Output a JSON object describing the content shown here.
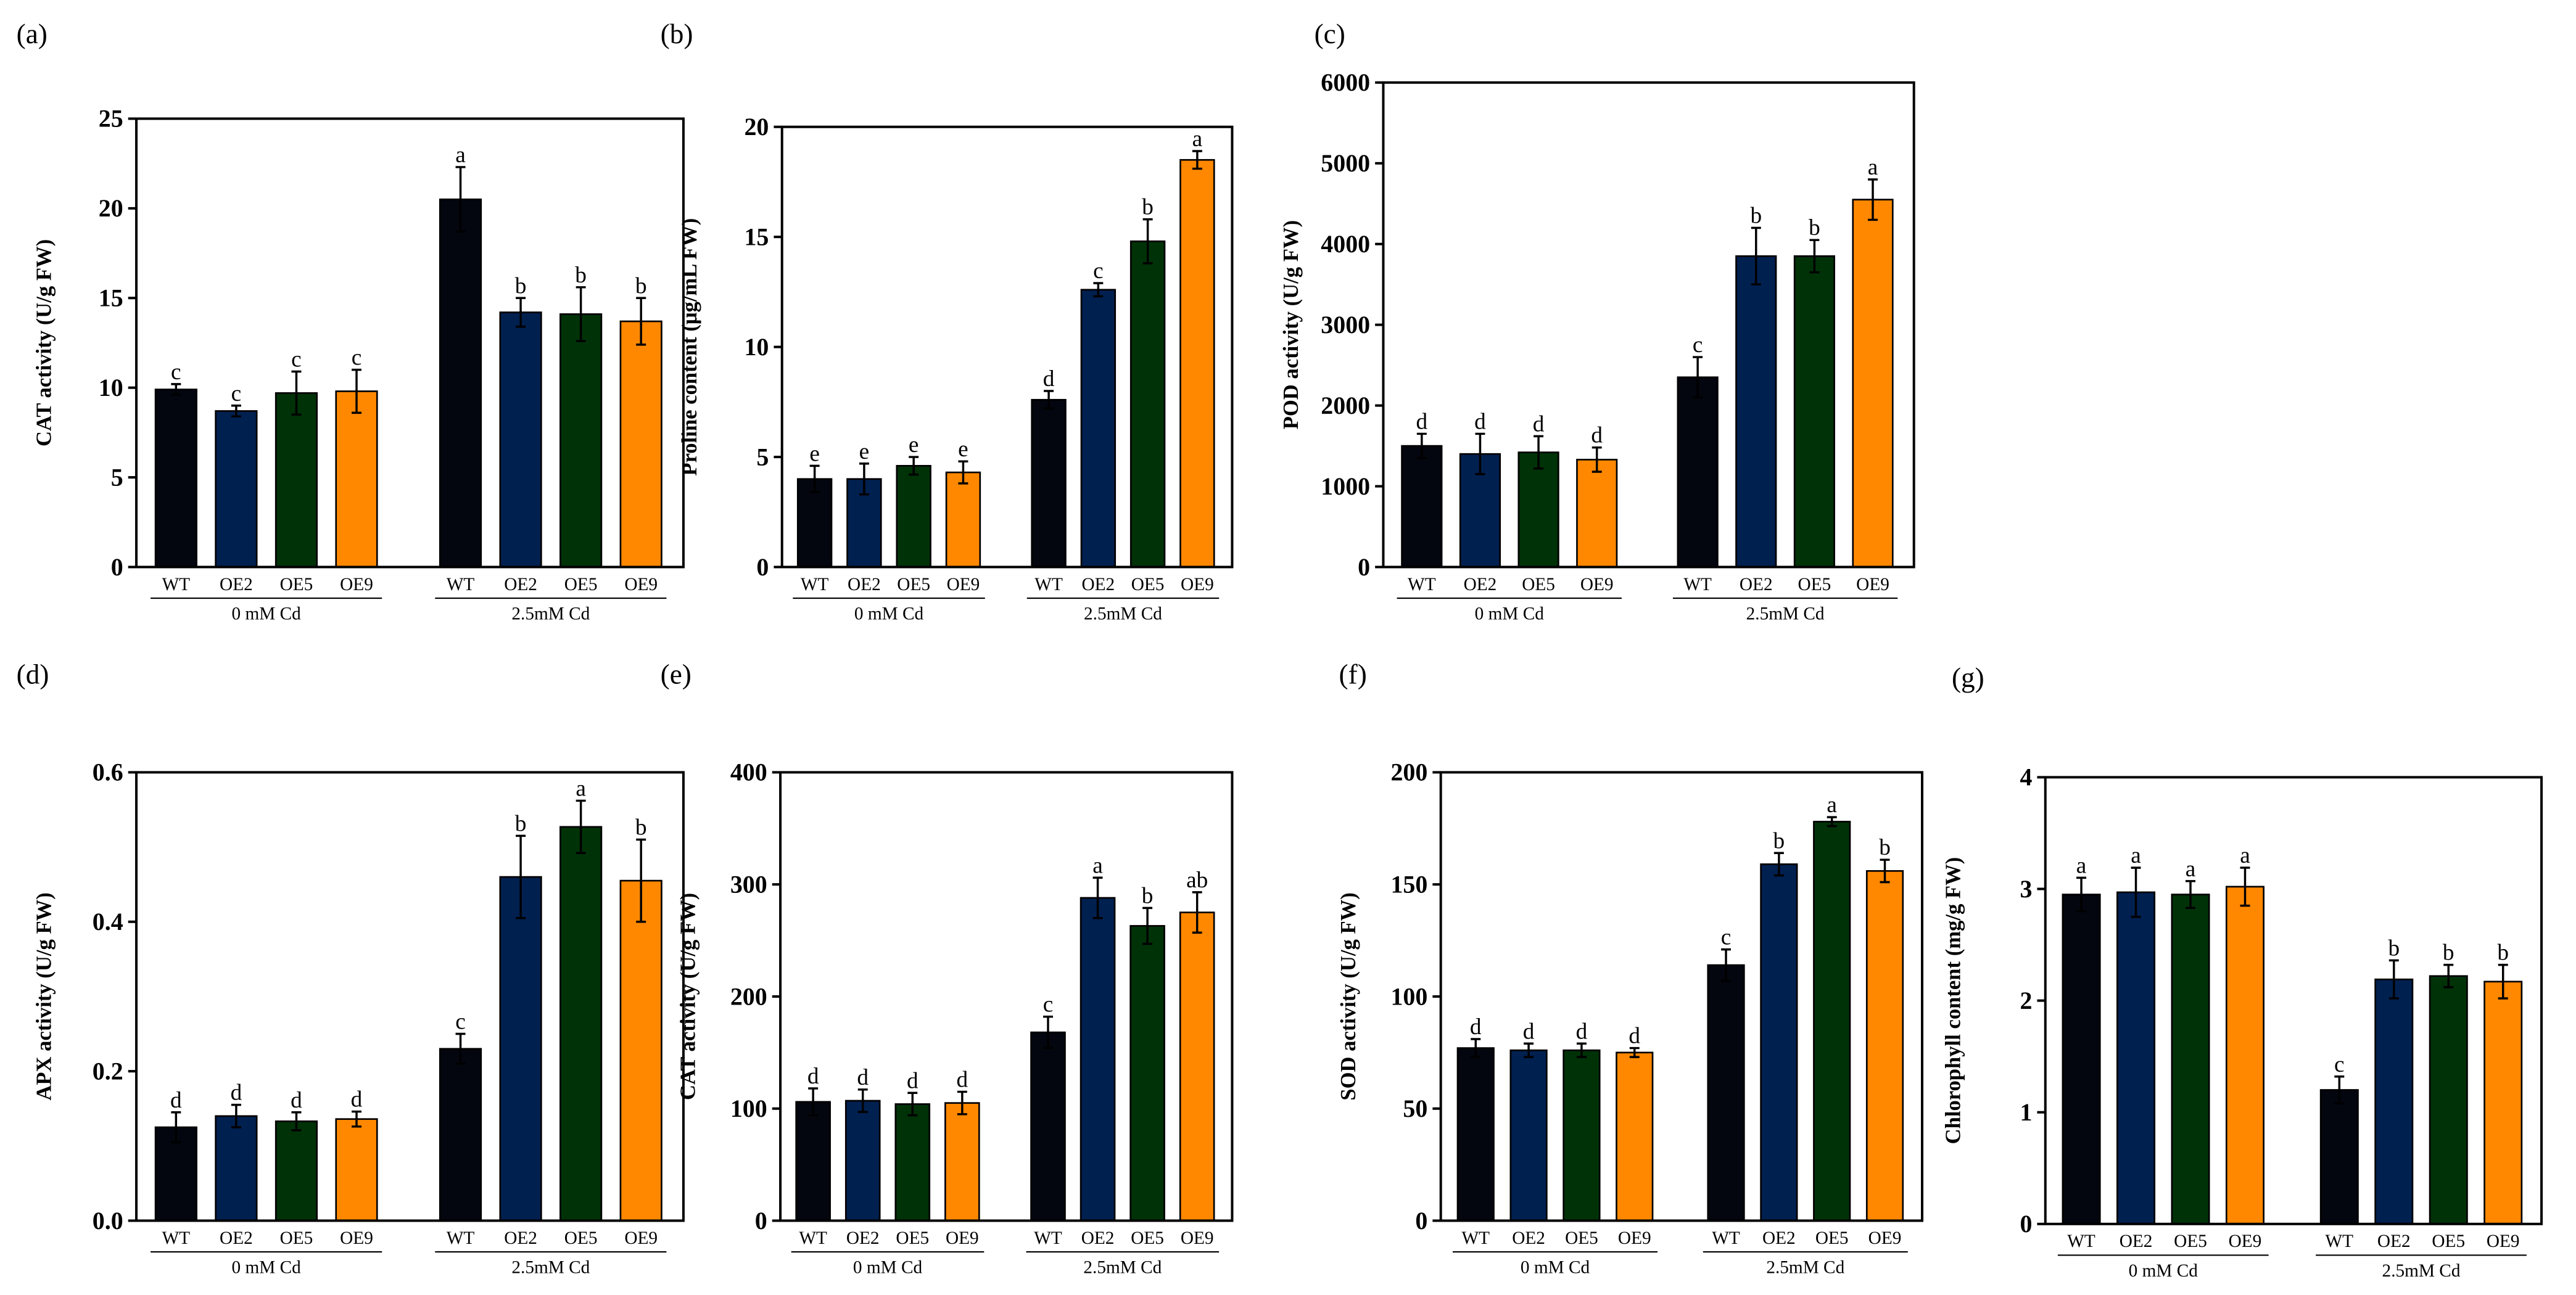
{
  "colors": [
    "#03060f",
    "#002050",
    "#003208",
    "#ff8800"
  ],
  "categories": [
    "WT",
    "OE2",
    "OE5",
    "OE9",
    "WT",
    "OE2",
    "OE5",
    "OE9"
  ],
  "groups": [
    "0 mM Cd",
    "2.5mM Cd"
  ],
  "chart_data": [
    {
      "type": "bar",
      "panel": "(a)",
      "ylabel": "CAT activity (U/g FW)",
      "ylim": [
        0,
        25
      ],
      "ticks": [
        "0",
        "5",
        "10",
        "15",
        "20",
        "25"
      ],
      "values": [
        9.9,
        8.7,
        9.7,
        9.8,
        20.5,
        14.2,
        14.1,
        13.7
      ],
      "errors": [
        0.3,
        0.3,
        1.2,
        1.2,
        1.8,
        0.8,
        1.5,
        1.3
      ],
      "letters": [
        "c",
        "c",
        "c",
        "c",
        "a",
        "b",
        "b",
        "b"
      ]
    },
    {
      "type": "bar",
      "panel": "(b)",
      "ylabel": "Proline content (μg/mL FW)",
      "ylim": [
        0,
        20
      ],
      "ticks": [
        "0",
        "5",
        "10",
        "15",
        "20"
      ],
      "values": [
        4.0,
        4.0,
        4.6,
        4.3,
        7.6,
        12.6,
        14.8,
        18.5
      ],
      "errors": [
        0.6,
        0.7,
        0.4,
        0.5,
        0.4,
        0.3,
        1.0,
        0.4
      ],
      "letters": [
        "e",
        "e",
        "e",
        "e",
        "d",
        "c",
        "b",
        "a"
      ]
    },
    {
      "type": "bar",
      "panel": "(c)",
      "ylabel": "POD activity (U/g FW)",
      "ylim": [
        0,
        6000
      ],
      "ticks": [
        "0",
        "1000",
        "2000",
        "3000",
        "4000",
        "5000",
        "6000"
      ],
      "values": [
        1500,
        1400,
        1420,
        1330,
        2350,
        3850,
        3850,
        4550
      ],
      "errors": [
        150,
        250,
        200,
        150,
        250,
        350,
        200,
        250
      ],
      "letters": [
        "d",
        "d",
        "d",
        "d",
        "c",
        "b",
        "b",
        "a"
      ]
    },
    {
      "type": "bar",
      "panel": "(d)",
      "ylabel": "APX activity (U/g FW)",
      "ylim": [
        0,
        0.6
      ],
      "ticks": [
        "0.0",
        "0.2",
        "0.4",
        "0.6"
      ],
      "values": [
        0.125,
        0.14,
        0.133,
        0.136,
        0.23,
        0.46,
        0.527,
        0.455
      ],
      "errors": [
        0.02,
        0.015,
        0.012,
        0.01,
        0.02,
        0.055,
        0.035,
        0.055
      ],
      "letters": [
        "d",
        "d",
        "d",
        "d",
        "c",
        "b",
        "a",
        "b"
      ]
    },
    {
      "type": "bar",
      "panel": "(e)",
      "ylabel": "CAT activity (U/g FW)",
      "ylim": [
        0,
        400
      ],
      "ticks": [
        "0",
        "100",
        "200",
        "300",
        "400"
      ],
      "values": [
        106,
        107,
        104,
        105,
        168,
        288,
        263,
        275
      ],
      "errors": [
        12,
        10,
        10,
        10,
        14,
        18,
        16,
        18
      ],
      "letters": [
        "d",
        "d",
        "d",
        "d",
        "c",
        "a",
        "b",
        "ab"
      ]
    },
    {
      "type": "bar",
      "panel": "(f)",
      "ylabel": "SOD activity (U/g FW)",
      "ylim": [
        0,
        200
      ],
      "ticks": [
        "0",
        "50",
        "100",
        "150",
        "200"
      ],
      "values": [
        77,
        76,
        76,
        75,
        114,
        159,
        178,
        156
      ],
      "errors": [
        4,
        3,
        3,
        2,
        7,
        5,
        2,
        5
      ],
      "letters": [
        "d",
        "d",
        "d",
        "d",
        "c",
        "b",
        "a",
        "b"
      ]
    },
    {
      "type": "bar",
      "panel": "(g)",
      "ylabel": "Chlorophyll content (mg/g FW)",
      "ylim": [
        0,
        4
      ],
      "ticks": [
        "0",
        "1",
        "2",
        "3",
        "4"
      ],
      "values": [
        2.95,
        2.97,
        2.95,
        3.02,
        1.2,
        2.19,
        2.22,
        2.17
      ],
      "errors": [
        0.15,
        0.22,
        0.12,
        0.17,
        0.12,
        0.17,
        0.1,
        0.15
      ],
      "letters": [
        "a",
        "a",
        "a",
        "a",
        "c",
        "b",
        "b",
        "b"
      ]
    }
  ]
}
